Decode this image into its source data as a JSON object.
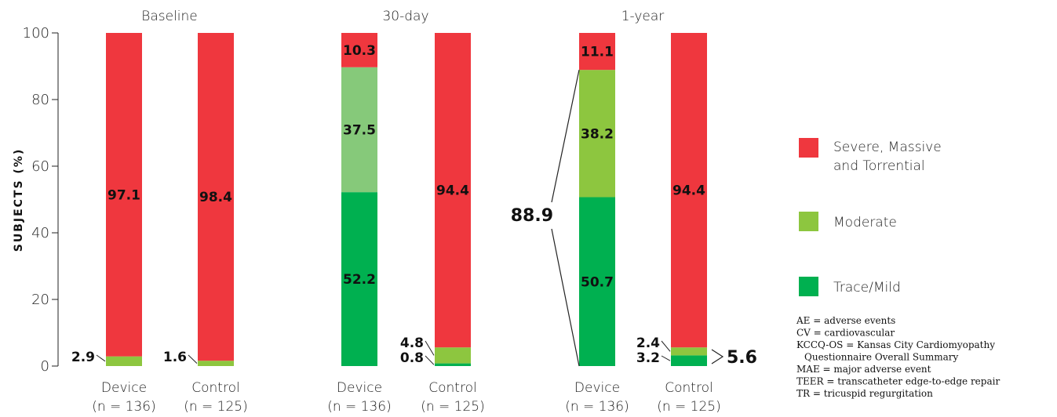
{
  "chart_data": {
    "type": "bar",
    "stacked": true,
    "ylabel": "SUBJECTS (%)",
    "ylim": [
      0,
      100
    ],
    "yticks": [
      0,
      20,
      40,
      60,
      80,
      100
    ],
    "groups": [
      "Baseline",
      "30-day",
      "1-year"
    ],
    "categories": [
      {
        "group": "Baseline",
        "label": "Device",
        "n": "(n = 136)"
      },
      {
        "group": "Baseline",
        "label": "Control",
        "n": "(n = 125)"
      },
      {
        "group": "30-day",
        "label": "Device",
        "n": "(n = 136)"
      },
      {
        "group": "30-day",
        "label": "Control",
        "n": "(n = 125)"
      },
      {
        "group": "1-year",
        "label": "Device",
        "n": "(n = 136)"
      },
      {
        "group": "1-year",
        "label": "Control",
        "n": "(n = 125)"
      }
    ],
    "series": [
      {
        "name": "Trace/Mild",
        "color": "#00b050",
        "values": [
          0,
          0,
          52.2,
          0.8,
          50.7,
          3.2
        ],
        "labels": [
          "",
          "",
          "52.2",
          "0.8",
          "50.7",
          "3.2"
        ]
      },
      {
        "name": "Moderate",
        "color": "#8dc63f",
        "values": [
          2.9,
          1.6,
          37.5,
          4.8,
          38.2,
          2.4
        ],
        "labels": [
          "2.9",
          "1.6",
          "37.5",
          "4.8",
          "38.2",
          "2.4"
        ]
      },
      {
        "name": "Severe, Massive and Torrential",
        "legend_lines": [
          "Severe, Massive",
          "and Torrential"
        ],
        "color": "#ef373e",
        "values": [
          97.1,
          98.4,
          10.3,
          94.4,
          11.1,
          94.4
        ],
        "labels": [
          "97.1",
          "98.4",
          "10.3",
          "94.4",
          "11.1",
          "94.4"
        ]
      }
    ],
    "moderate_30day_device_color": "#86c97a",
    "callouts": [
      {
        "bar": 4,
        "label": "88.9"
      },
      {
        "bar": 5,
        "label": "5.6"
      }
    ],
    "legend_position": "right",
    "grid": false
  },
  "abbreviations": [
    "AE = adverse events",
    "CV = cardiovascular",
    "KCCQ-OS = Kansas City Cardiomyopathy",
    "Questionnaire Overall Summary",
    "MAE = major adverse event",
    "TEER = transcatheter edge-to-edge repair",
    "TR = tricuspid regurgitation"
  ]
}
